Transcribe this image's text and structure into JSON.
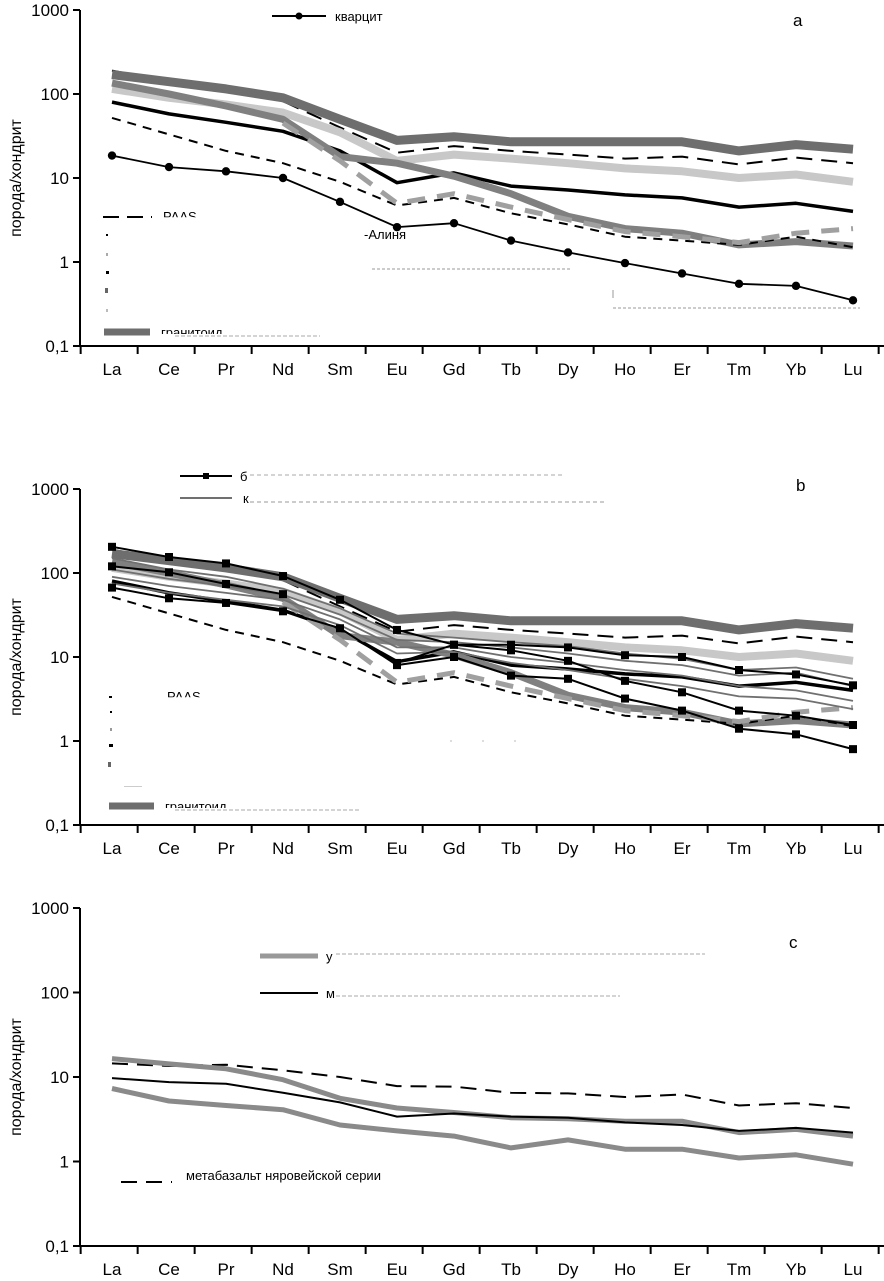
{
  "colors": {
    "black": "#000000",
    "dark_gray": "#6e6e6e",
    "mid_gray": "#808080",
    "light_gray": "#c8c8c8",
    "dash_gray": "#a0a0a0",
    "thin_gray": "#707070"
  },
  "chart_data": [
    {
      "type": "line",
      "panel": "a",
      "title": "",
      "xlabel": "",
      "ylabel": "порода/хондрит",
      "yscale": "log",
      "ylim": [
        0.1,
        1000
      ],
      "yticks": [
        "0,1",
        "1",
        "10",
        "100",
        "1000"
      ],
      "categories": [
        "La",
        "Ce",
        "Pr",
        "Nd",
        "Sm",
        "Eu",
        "Gd",
        "Tb",
        "Dy",
        "Ho",
        "Er",
        "Tm",
        "Yb",
        "Lu"
      ],
      "grid": false,
      "legend_items": [
        {
          "label": "кварцит",
          "style": "black-dot"
        },
        {
          "label": "PAAS",
          "style": "black-long-dash"
        },
        {
          "label": "-Алиня",
          "style": "fragment"
        },
        {
          "label": "гранитоид",
          "style": "dark-gray-thick"
        }
      ],
      "series": [
        {
          "name": "PAAS",
          "style": "black-long-dash",
          "values": [
            190,
            140,
            110,
            82,
            40,
            20,
            24,
            21,
            19,
            17,
            18,
            14.5,
            17.5,
            15
          ]
        },
        {
          "name": "dark-gray-thick",
          "style": "dark-gray-thick",
          "values": [
            170,
            140,
            115,
            90,
            50,
            28,
            31,
            27,
            27,
            27,
            27,
            21,
            25,
            22
          ]
        },
        {
          "name": "light-gray-thick",
          "style": "light-gray-thick",
          "values": [
            115,
            90,
            75,
            60,
            35,
            16,
            19,
            17,
            15,
            13,
            12,
            10,
            11,
            9
          ]
        },
        {
          "name": "black-thick",
          "style": "black-thick",
          "values": [
            80,
            58,
            46,
            36,
            21,
            8.8,
            11.5,
            8,
            7.2,
            6.3,
            5.8,
            4.5,
            5,
            4
          ]
        },
        {
          "name": "гранитоид",
          "style": "mid-gray-thick",
          "values": [
            135,
            100,
            72,
            50,
            18,
            15,
            10.5,
            6.5,
            3.5,
            2.5,
            2.2,
            1.6,
            1.75,
            1.55
          ]
        },
        {
          "name": "black-short-dash",
          "style": "black-short-dash",
          "values": [
            52,
            33,
            21,
            15,
            9,
            4.7,
            5.8,
            3.8,
            2.8,
            2.0,
            1.8,
            1.6,
            2.0,
            1.5
          ]
        },
        {
          "name": "gray-dash",
          "style": "gray-dash",
          "values": [
            null,
            null,
            null,
            45,
            16,
            5,
            6.5,
            4.5,
            3.2,
            2.3,
            2.0,
            1.7,
            2.2,
            2.5
          ]
        },
        {
          "name": "кварцит",
          "style": "black-dot",
          "values": [
            18.5,
            13.5,
            12,
            10,
            5.2,
            2.6,
            2.9,
            1.8,
            1.3,
            0.97,
            0.73,
            0.55,
            0.52,
            0.35
          ]
        }
      ]
    },
    {
      "type": "line",
      "panel": "b",
      "title": "",
      "xlabel": "",
      "ylabel": "порода/хондрит",
      "yscale": "log",
      "ylim": [
        0.1,
        1000
      ],
      "yticks": [
        "0,1",
        "1",
        "10",
        "100",
        "1000"
      ],
      "categories": [
        "La",
        "Ce",
        "Pr",
        "Nd",
        "Sm",
        "Eu",
        "Gd",
        "Tb",
        "Dy",
        "Ho",
        "Er",
        "Tm",
        "Yb",
        "Lu"
      ],
      "grid": false,
      "legend_items": [
        {
          "label": "б",
          "style": "black-square"
        },
        {
          "label": "к",
          "style": "thin-gray"
        },
        {
          "label": "PAAS",
          "style": "black-long-dash"
        },
        {
          "label": "гранитоид",
          "style": "dark-gray-thick"
        }
      ],
      "series": [
        {
          "name": "PAAS",
          "style": "black-long-dash",
          "values": [
            190,
            140,
            110,
            82,
            40,
            20,
            24,
            21,
            19,
            17,
            18,
            14.5,
            17.5,
            15
          ]
        },
        {
          "name": "dark-gray-thick",
          "style": "dark-gray-thick",
          "values": [
            170,
            140,
            115,
            90,
            50,
            28,
            31,
            27,
            27,
            27,
            27,
            21,
            25,
            22
          ]
        },
        {
          "name": "light-gray-thick",
          "style": "light-gray-thick",
          "values": [
            115,
            90,
            75,
            60,
            35,
            16,
            19,
            17,
            15,
            13,
            12,
            10,
            11,
            9
          ]
        },
        {
          "name": "black-thick",
          "style": "black-thick",
          "values": [
            80,
            58,
            46,
            36,
            21,
            8.8,
            11.5,
            8,
            7.2,
            6.3,
            5.8,
            4.5,
            5,
            4
          ]
        },
        {
          "name": "гранитоид",
          "style": "mid-gray-thick",
          "values": [
            135,
            100,
            72,
            50,
            18,
            15,
            10.5,
            6.5,
            3.5,
            2.5,
            2.2,
            1.6,
            1.75,
            1.55
          ]
        },
        {
          "name": "black-short-dash",
          "style": "black-short-dash",
          "values": [
            52,
            33,
            21,
            15,
            9,
            4.7,
            5.8,
            3.8,
            2.8,
            2.0,
            1.8,
            1.6,
            2.0,
            1.5
          ]
        },
        {
          "name": "gray-dash",
          "style": "gray-dash",
          "values": [
            null,
            null,
            null,
            45,
            16,
            5,
            6.5,
            4.5,
            3.2,
            2.3,
            2.0,
            1.7,
            2.2,
            2.5
          ]
        },
        {
          "name": "thin-gray-1",
          "style": "thin-gray",
          "values": [
            150,
            110,
            90,
            65,
            38,
            19,
            17,
            15,
            13.5,
            11,
            9.5,
            7,
            7.5,
            5.5
          ]
        },
        {
          "name": "thin-gray-2",
          "style": "thin-gray",
          "values": [
            110,
            85,
            70,
            55,
            32,
            16,
            15,
            13,
            11,
            9,
            8,
            6,
            6.5,
            4.5
          ]
        },
        {
          "name": "thin-gray-3",
          "style": "thin-gray",
          "values": [
            90,
            70,
            58,
            48,
            28,
            13,
            13,
            10,
            8.5,
            7,
            6,
            4.5,
            4,
            3
          ]
        },
        {
          "name": "thin-gray-4",
          "style": "thin-gray",
          "values": [
            75,
            58,
            48,
            40,
            24,
            11,
            11.5,
            8.5,
            7,
            5.5,
            4.5,
            3.4,
            3.2,
            2.4
          ]
        },
        {
          "name": "black-square-1",
          "style": "black-square",
          "values": [
            205,
            155,
            130,
            92,
            48,
            21,
            14,
            14,
            13,
            10.5,
            10,
            7,
            6.2,
            4.6
          ]
        },
        {
          "name": "black-square-2",
          "style": "black-square",
          "values": [
            120,
            102,
            74,
            56,
            null,
            8.5,
            14,
            12,
            9,
            5.2,
            3.8,
            2.3,
            2.0,
            1.55
          ]
        },
        {
          "name": "black-square-3",
          "style": "black-square",
          "values": [
            67,
            50,
            44,
            35,
            22,
            8,
            10,
            6,
            5.5,
            3.2,
            2.3,
            1.4,
            1.2,
            0.8
          ]
        }
      ]
    },
    {
      "type": "line",
      "panel": "c",
      "title": "",
      "xlabel": "",
      "ylabel": "порода/хондрит",
      "yscale": "log",
      "ylim": [
        0.1,
        1000
      ],
      "yticks": [
        "0,1",
        "1",
        "10",
        "100",
        "1000"
      ],
      "categories": [
        "La",
        "Ce",
        "Pr",
        "Nd",
        "Sm",
        "Eu",
        "Gd",
        "Tb",
        "Dy",
        "Ho",
        "Er",
        "Tm",
        "Yb",
        "Lu"
      ],
      "grid": false,
      "legend_items": [
        {
          "label": "у",
          "style": "gray-thick"
        },
        {
          "label": "м",
          "style": "black-thin"
        },
        {
          "label": "метабазальт няровейской серии",
          "style": "black-long-dash"
        }
      ],
      "series": [
        {
          "name": "метабазальт няровейской серии",
          "style": "black-long-dash",
          "values": [
            14.5,
            13.5,
            14,
            12,
            10,
            7.8,
            7.7,
            6.5,
            6.4,
            5.8,
            6.2,
            4.6,
            4.9,
            4.3
          ]
        },
        {
          "name": "gray-thick-1",
          "style": "gray-thick",
          "values": [
            16.5,
            14.3,
            12.5,
            9.3,
            5.6,
            4.3,
            3.8,
            3.3,
            3.2,
            3.0,
            3.0,
            2.2,
            2.4,
            2.0
          ]
        },
        {
          "name": "gray-thick-2",
          "style": "gray-thick",
          "values": [
            7.3,
            5.2,
            4.6,
            4.1,
            2.7,
            2.3,
            2.0,
            1.45,
            1.8,
            1.4,
            1.4,
            1.1,
            1.2,
            0.93
          ]
        },
        {
          "name": "black-thin",
          "style": "black-thin",
          "values": [
            9.7,
            8.7,
            8.3,
            6.5,
            5.0,
            3.4,
            3.7,
            3.4,
            3.3,
            2.9,
            2.7,
            2.3,
            2.5,
            2.2
          ]
        }
      ]
    }
  ]
}
